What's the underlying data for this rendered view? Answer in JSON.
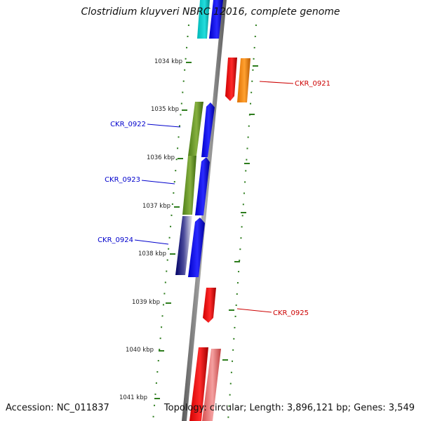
{
  "title": "Clostridium kluyveri NBRC 12016, complete genome",
  "accession": "Accession: NC_011837",
  "summary": "Topology: circular; Length: 3,896,121 bp; Genes: 3,549",
  "ruler_labels": [
    "1034 kbp",
    "1035 kbp",
    "1036 kbp",
    "1037 kbp",
    "1038 kbp",
    "1039 kbp",
    "1040 kbp",
    "1041 kbp"
  ],
  "gene_labels": [
    {
      "text": "CKR_0921",
      "color": "#cc0000"
    },
    {
      "text": "CKR_0922",
      "color": "#0000cc"
    },
    {
      "text": "CKR_0923",
      "color": "#0000cc"
    },
    {
      "text": "CKR_0924",
      "color": "#0000cc"
    },
    {
      "text": "CKR_0925",
      "color": "#cc0000"
    }
  ],
  "colors": {
    "backbone": "#808080",
    "tick": "#2e7d1e",
    "label_forward": "#0000cc",
    "label_reverse": "#cc0000"
  }
}
